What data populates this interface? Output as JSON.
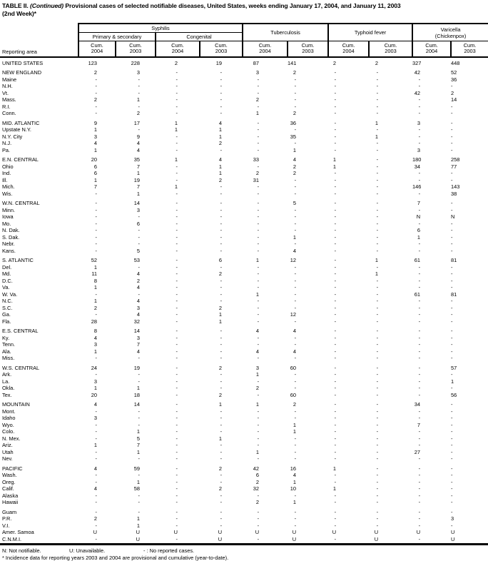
{
  "title": {
    "prefix": "TABLE II.",
    "continued": "(Continued)",
    "rest": "Provisional cases of selected notifiable diseases, United States, weeks ending January 17, 2004, and January 11, 2003",
    "line2": "(2nd Week)*"
  },
  "header": {
    "stub": "Reporting area",
    "cum_label": "Cum.",
    "groups": [
      {
        "label": "Syphilis",
        "sub": [
          "Primary & secondary",
          "Congenital"
        ]
      },
      {
        "label": "Tuberculosis"
      },
      {
        "label": "Typhoid fever"
      },
      {
        "label": "Varicella",
        "label2": "(Chickenpox)"
      }
    ],
    "col_years": [
      "2004",
      "2003",
      "2004",
      "2003",
      "2004",
      "2003",
      "2004",
      "2003",
      "2004",
      "2003"
    ]
  },
  "sections": [
    {
      "rows": [
        {
          "area": "UNITED STATES",
          "values": [
            "123",
            "228",
            "2",
            "19",
            "87",
            "141",
            "2",
            "2",
            "327",
            "448"
          ]
        }
      ]
    },
    {
      "rows": [
        {
          "area": "NEW ENGLAND",
          "values": [
            "2",
            "3",
            "-",
            "-",
            "3",
            "2",
            "-",
            "-",
            "42",
            "52"
          ]
        },
        {
          "area": "Maine",
          "values": [
            "-",
            "-",
            "-",
            "-",
            "-",
            "-",
            "-",
            "-",
            "-",
            "36"
          ]
        },
        {
          "area": "N.H.",
          "values": [
            "-",
            "-",
            "-",
            "-",
            "-",
            "-",
            "-",
            "-",
            "-",
            "-"
          ]
        },
        {
          "area": "Vt.",
          "values": [
            "-",
            "-",
            "-",
            "-",
            "-",
            "-",
            "-",
            "-",
            "42",
            "2"
          ]
        },
        {
          "area": "Mass.",
          "values": [
            "2",
            "1",
            "-",
            "-",
            "2",
            "-",
            "-",
            "-",
            "-",
            "14"
          ]
        },
        {
          "area": "R.I.",
          "values": [
            "-",
            "-",
            "-",
            "-",
            "-",
            "-",
            "-",
            "-",
            "-",
            "-"
          ]
        },
        {
          "area": "Conn.",
          "values": [
            "-",
            "2",
            "-",
            "-",
            "1",
            "2",
            "-",
            "-",
            "-",
            "-"
          ]
        }
      ]
    },
    {
      "rows": [
        {
          "area": "MID. ATLANTIC",
          "values": [
            "9",
            "17",
            "1",
            "4",
            "-",
            "36",
            "-",
            "1",
            "3",
            "-"
          ]
        },
        {
          "area": "Upstate N.Y.",
          "values": [
            "1",
            "-",
            "1",
            "1",
            "-",
            "-",
            "-",
            "-",
            "-",
            "-"
          ]
        },
        {
          "area": "N.Y. City",
          "values": [
            "3",
            "9",
            "-",
            "1",
            "-",
            "35",
            "-",
            "1",
            "-",
            "-"
          ]
        },
        {
          "area": "N.J.",
          "values": [
            "4",
            "4",
            "-",
            "2",
            "-",
            "-",
            "-",
            "-",
            "-",
            "-"
          ]
        },
        {
          "area": "Pa.",
          "values": [
            "1",
            "4",
            "-",
            "-",
            "-",
            "1",
            "-",
            "-",
            "3",
            "-"
          ]
        }
      ]
    },
    {
      "rows": [
        {
          "area": "E.N. CENTRAL",
          "values": [
            "20",
            "35",
            "1",
            "4",
            "33",
            "4",
            "1",
            "-",
            "180",
            "258"
          ]
        },
        {
          "area": "Ohio",
          "values": [
            "6",
            "7",
            "-",
            "1",
            "-",
            "2",
            "1",
            "-",
            "34",
            "77"
          ]
        },
        {
          "area": "Ind.",
          "values": [
            "6",
            "1",
            "-",
            "1",
            "2",
            "2",
            "-",
            "-",
            "-",
            "-"
          ]
        },
        {
          "area": "Ill.",
          "values": [
            "1",
            "19",
            "-",
            "2",
            "31",
            "-",
            "-",
            "-",
            "-",
            "-"
          ]
        },
        {
          "area": "Mich.",
          "values": [
            "7",
            "7",
            "1",
            "-",
            "-",
            "-",
            "-",
            "-",
            "146",
            "143"
          ]
        },
        {
          "area": "Wis.",
          "values": [
            "-",
            "1",
            "-",
            "-",
            "-",
            "-",
            "-",
            "-",
            "-",
            "38"
          ]
        }
      ]
    },
    {
      "rows": [
        {
          "area": "W.N. CENTRAL",
          "values": [
            "-",
            "14",
            "-",
            "-",
            "-",
            "5",
            "-",
            "-",
            "7",
            "-"
          ]
        },
        {
          "area": "Minn.",
          "values": [
            "-",
            "3",
            "-",
            "-",
            "-",
            "-",
            "-",
            "-",
            "-",
            "-"
          ]
        },
        {
          "area": "Iowa",
          "values": [
            "-",
            "-",
            "-",
            "-",
            "-",
            "-",
            "-",
            "-",
            "N",
            "N"
          ]
        },
        {
          "area": "Mo.",
          "values": [
            "-",
            "6",
            "-",
            "-",
            "-",
            "-",
            "-",
            "-",
            "-",
            "-"
          ]
        },
        {
          "area": "N. Dak.",
          "values": [
            "-",
            "-",
            "-",
            "-",
            "-",
            "-",
            "-",
            "-",
            "6",
            "-"
          ]
        },
        {
          "area": "S. Dak.",
          "values": [
            "-",
            "-",
            "-",
            "-",
            "-",
            "1",
            "-",
            "-",
            "1",
            "-"
          ]
        },
        {
          "area": "Nebr.",
          "values": [
            "-",
            "-",
            "-",
            "-",
            "-",
            "-",
            "-",
            "-",
            "-",
            "-"
          ]
        },
        {
          "area": "Kans.",
          "values": [
            "-",
            "5",
            "-",
            "-",
            "-",
            "4",
            "-",
            "-",
            "-",
            "-"
          ]
        }
      ]
    },
    {
      "rows": [
        {
          "area": "S. ATLANTIC",
          "values": [
            "52",
            "53",
            "-",
            "6",
            "1",
            "12",
            "-",
            "1",
            "61",
            "81"
          ]
        },
        {
          "area": "Del.",
          "values": [
            "1",
            "-",
            "-",
            "-",
            "-",
            "-",
            "-",
            "-",
            "-",
            "-"
          ]
        },
        {
          "area": "Md.",
          "values": [
            "11",
            "4",
            "-",
            "2",
            "-",
            "-",
            "-",
            "1",
            "-",
            "-"
          ]
        },
        {
          "area": "D.C.",
          "values": [
            "8",
            "2",
            "-",
            "-",
            "-",
            "-",
            "-",
            "-",
            "-",
            "-"
          ]
        },
        {
          "area": "Va.",
          "values": [
            "1",
            "4",
            "-",
            "-",
            "-",
            "-",
            "-",
            "-",
            "-",
            "-"
          ]
        },
        {
          "area": "W. Va.",
          "values": [
            "-",
            "-",
            "-",
            "-",
            "1",
            "-",
            "-",
            "-",
            "61",
            "81"
          ]
        },
        {
          "area": "N.C.",
          "values": [
            "1",
            "4",
            "-",
            "-",
            "-",
            "-",
            "-",
            "-",
            "-",
            "-"
          ]
        },
        {
          "area": "S.C.",
          "values": [
            "2",
            "3",
            "-",
            "2",
            "-",
            "-",
            "-",
            "-",
            "-",
            "-"
          ]
        },
        {
          "area": "Ga.",
          "values": [
            "-",
            "4",
            "-",
            "1",
            "-",
            "12",
            "-",
            "-",
            "-",
            "-"
          ]
        },
        {
          "area": "Fla.",
          "values": [
            "28",
            "32",
            "-",
            "1",
            "-",
            "-",
            "-",
            "-",
            "-",
            "-"
          ]
        }
      ]
    },
    {
      "rows": [
        {
          "area": "E.S. CENTRAL",
          "values": [
            "8",
            "14",
            "-",
            "-",
            "4",
            "4",
            "-",
            "-",
            "-",
            "-"
          ]
        },
        {
          "area": "Ky.",
          "values": [
            "4",
            "3",
            "-",
            "-",
            "-",
            "-",
            "-",
            "-",
            "-",
            "-"
          ]
        },
        {
          "area": "Tenn.",
          "values": [
            "3",
            "7",
            "-",
            "-",
            "-",
            "-",
            "-",
            "-",
            "-",
            "-"
          ]
        },
        {
          "area": "Ala.",
          "values": [
            "1",
            "4",
            "-",
            "-",
            "4",
            "4",
            "-",
            "-",
            "-",
            "-"
          ]
        },
        {
          "area": "Miss.",
          "values": [
            "-",
            "-",
            "-",
            "-",
            "-",
            "-",
            "-",
            "-",
            "-",
            "-"
          ]
        }
      ]
    },
    {
      "rows": [
        {
          "area": "W.S. CENTRAL",
          "values": [
            "24",
            "19",
            "-",
            "2",
            "3",
            "60",
            "-",
            "-",
            "-",
            "57"
          ]
        },
        {
          "area": "Ark.",
          "values": [
            "-",
            "-",
            "-",
            "-",
            "1",
            "-",
            "-",
            "-",
            "-",
            "-"
          ]
        },
        {
          "area": "La.",
          "values": [
            "3",
            "-",
            "-",
            "-",
            "-",
            "-",
            "-",
            "-",
            "-",
            "1"
          ]
        },
        {
          "area": "Okla.",
          "values": [
            "1",
            "1",
            "-",
            "-",
            "2",
            "-",
            "-",
            "-",
            "-",
            "-"
          ]
        },
        {
          "area": "Tex.",
          "values": [
            "20",
            "18",
            "-",
            "2",
            "-",
            "60",
            "-",
            "-",
            "-",
            "56"
          ]
        }
      ]
    },
    {
      "rows": [
        {
          "area": "MOUNTAIN",
          "values": [
            "4",
            "14",
            "-",
            "1",
            "1",
            "2",
            "-",
            "-",
            "34",
            "-"
          ]
        },
        {
          "area": "Mont.",
          "values": [
            "-",
            "-",
            "-",
            "-",
            "-",
            "-",
            "-",
            "-",
            "-",
            "-"
          ]
        },
        {
          "area": "Idaho",
          "values": [
            "3",
            "-",
            "-",
            "-",
            "-",
            "-",
            "-",
            "-",
            "-",
            "-"
          ]
        },
        {
          "area": "Wyo.",
          "values": [
            "-",
            "-",
            "-",
            "-",
            "-",
            "1",
            "-",
            "-",
            "7",
            "-"
          ]
        },
        {
          "area": "Colo.",
          "values": [
            "-",
            "1",
            "-",
            "-",
            "-",
            "1",
            "-",
            "-",
            "-",
            "-"
          ]
        },
        {
          "area": "N. Mex.",
          "values": [
            "-",
            "5",
            "-",
            "1",
            "-",
            "-",
            "-",
            "-",
            "-",
            "-"
          ]
        },
        {
          "area": "Ariz.",
          "values": [
            "1",
            "7",
            "-",
            "-",
            "-",
            "-",
            "-",
            "-",
            "-",
            "-"
          ]
        },
        {
          "area": "Utah",
          "values": [
            "-",
            "1",
            "-",
            "-",
            "1",
            "-",
            "-",
            "-",
            "27",
            "-"
          ]
        },
        {
          "area": "Nev.",
          "values": [
            "-",
            "-",
            "-",
            "-",
            "-",
            "-",
            "-",
            "-",
            "-",
            "-"
          ]
        }
      ]
    },
    {
      "rows": [
        {
          "area": "PACIFIC",
          "values": [
            "4",
            "59",
            "-",
            "2",
            "42",
            "16",
            "1",
            "-",
            "-",
            "-"
          ]
        },
        {
          "area": "Wash.",
          "values": [
            "-",
            "-",
            "-",
            "-",
            "6",
            "4",
            "-",
            "-",
            "-",
            "-"
          ]
        },
        {
          "area": "Oreg.",
          "values": [
            "-",
            "1",
            "-",
            "-",
            "2",
            "1",
            "-",
            "-",
            "-",
            "-"
          ]
        },
        {
          "area": "Calif.",
          "values": [
            "4",
            "58",
            "-",
            "2",
            "32",
            "10",
            "1",
            "-",
            "-",
            "-"
          ]
        },
        {
          "area": "Alaska",
          "values": [
            "-",
            "-",
            "-",
            "-",
            "-",
            "-",
            "-",
            "-",
            "-",
            "-"
          ]
        },
        {
          "area": "Hawaii",
          "values": [
            "-",
            "-",
            "-",
            "-",
            "2",
            "1",
            "-",
            "-",
            "-",
            "-"
          ]
        }
      ]
    },
    {
      "rows": [
        {
          "area": "Guam",
          "values": [
            "-",
            "-",
            "-",
            "-",
            "-",
            "-",
            "-",
            "-",
            "-",
            "-"
          ]
        },
        {
          "area": "P.R.",
          "values": [
            "2",
            "1",
            "-",
            "-",
            "-",
            "-",
            "-",
            "-",
            "-",
            "3"
          ]
        },
        {
          "area": "V.I.",
          "values": [
            "-",
            "1",
            "-",
            "-",
            "-",
            "-",
            "-",
            "-",
            "-",
            "-"
          ]
        },
        {
          "area": "Amer. Samoa",
          "values": [
            "U",
            "U",
            "U",
            "U",
            "U",
            "U",
            "U",
            "U",
            "U",
            "U"
          ]
        },
        {
          "area": "C.N.M.I.",
          "values": [
            "-",
            "U",
            "-",
            "U",
            "-",
            "U",
            "-",
            "U",
            "-",
            "U"
          ]
        }
      ]
    }
  ],
  "footnotes": {
    "seg1": "N: Not notifiable.",
    "seg2": "U: Unavailable.",
    "seg3": "- : No reported cases.",
    "line2": "* Incidence data for reporting years 2003 and 2004 are provisional and cumulative (year-to-date)."
  }
}
